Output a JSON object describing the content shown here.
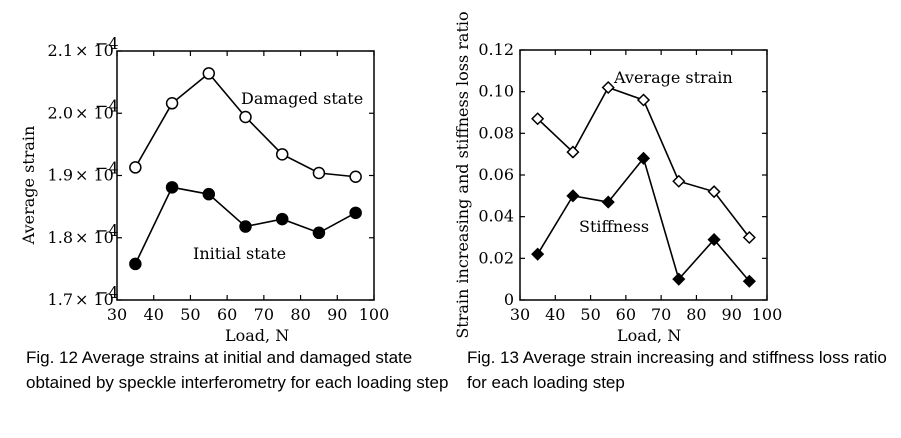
{
  "chart_data": [
    {
      "type": "line",
      "xlabel": "Load, N",
      "ylabel": "Average strain",
      "xlim": [
        30,
        100
      ],
      "ylim": [
        1.7,
        2.1
      ],
      "y_scale_exponent": "× 10⁻⁴",
      "xticks": [
        "30",
        "40",
        "50",
        "60",
        "70",
        "80",
        "90",
        "100"
      ],
      "yticks": [
        "1.7",
        "1.8",
        "1.9",
        "2.0",
        "2.1"
      ],
      "x": [
        35,
        45,
        55,
        65,
        75,
        85,
        95
      ],
      "series": [
        {
          "name": "Damaged state",
          "marker": "open-circle",
          "values": [
            1.913,
            2.016,
            2.064,
            1.994,
            1.934,
            1.904,
            1.898
          ]
        },
        {
          "name": "Initial state",
          "marker": "filled-circle",
          "values": [
            1.758,
            1.881,
            1.87,
            1.818,
            1.83,
            1.808,
            1.84
          ]
        }
      ],
      "caption": "Fig. 12  Average strains at initial and damaged state obtained by speckle interferometry for each loading step"
    },
    {
      "type": "line",
      "xlabel": "Load, N",
      "ylabel": "Strain increasing and stiffness loss ratio",
      "xlim": [
        30,
        100
      ],
      "ylim": [
        0,
        0.12
      ],
      "xticks": [
        "30",
        "40",
        "50",
        "60",
        "70",
        "80",
        "90",
        "100"
      ],
      "yticks": [
        "0",
        "0.02",
        "0.04",
        "0.06",
        "0.08",
        "0.10",
        "0.12"
      ],
      "x": [
        35,
        45,
        55,
        65,
        75,
        85,
        95
      ],
      "series": [
        {
          "name": "Average  strain",
          "marker": "open-diamond",
          "values": [
            0.087,
            0.071,
            0.102,
            0.096,
            0.057,
            0.052,
            0.03
          ]
        },
        {
          "name": "Stiffness",
          "marker": "filled-diamond",
          "values": [
            0.022,
            0.05,
            0.047,
            0.068,
            0.01,
            0.029,
            0.009
          ]
        }
      ],
      "caption": "Fig. 13  Average strain increasing and stiffness loss ratio for each loading step"
    }
  ]
}
